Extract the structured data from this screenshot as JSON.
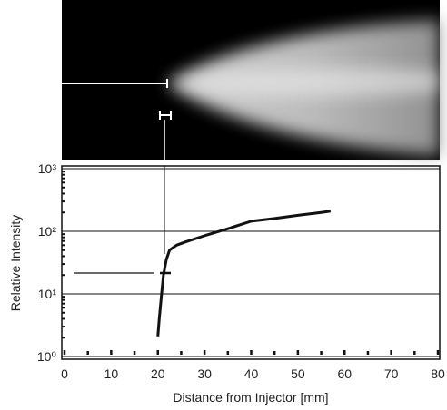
{
  "chart_data": {
    "type": "line",
    "xlabel": "Distance from Injector [mm]",
    "ylabel": "Relative Intensity",
    "xlim": [
      0,
      80
    ],
    "xticks": [
      0,
      10,
      20,
      30,
      40,
      50,
      60,
      70,
      80
    ],
    "ylim": [
      1,
      1000
    ],
    "yticks": [
      {
        "value": 1,
        "label": "10⁰"
      },
      {
        "value": 10,
        "label": "10¹"
      },
      {
        "value": 100,
        "label": "10²"
      },
      {
        "value": 1000,
        "label": "10³"
      }
    ],
    "ylog": true,
    "grid": true,
    "series": [
      {
        "color": "#111111",
        "x": [
          20,
          20.3,
          20.8,
          21.2,
          21.8,
          22.5,
          24,
          26,
          30,
          35,
          40,
          45,
          50,
          55,
          57
        ],
        "values": [
          2.1,
          4,
          10,
          20,
          35,
          50,
          60,
          68,
          85,
          110,
          145,
          160,
          180,
          200,
          210
        ]
      }
    ]
  }
}
